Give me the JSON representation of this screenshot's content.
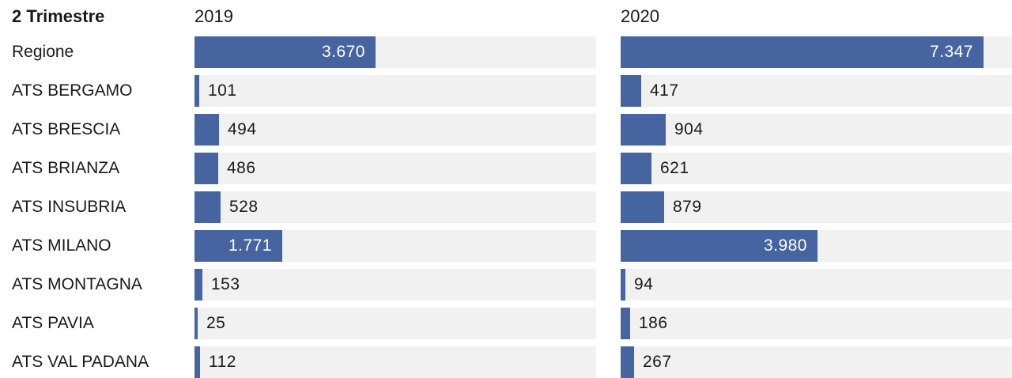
{
  "header": {
    "label_column": "2 Trimestre",
    "columns": [
      "2019",
      "2020"
    ]
  },
  "colors": {
    "bar": "#4664a0",
    "track": "#f1f1f1",
    "text": "#1a1a1a",
    "label_inside": "#ffffff"
  },
  "chart_data": {
    "type": "bar",
    "orientation": "horizontal",
    "categories": [
      "Regione",
      "ATS BERGAMO",
      "ATS BRESCIA",
      "ATS BRIANZA",
      "ATS INSUBRIA",
      "ATS MILANO",
      "ATS MONTAGNA",
      "ATS PAVIA",
      "ATS VAL PADANA"
    ],
    "series": [
      {
        "name": "2019",
        "values": [
          3670,
          101,
          494,
          486,
          528,
          1771,
          153,
          25,
          112
        ],
        "labels": [
          "3.670",
          "101",
          "494",
          "486",
          "528",
          "1.771",
          "153",
          "25",
          "112"
        ]
      },
      {
        "name": "2020",
        "values": [
          7347,
          417,
          904,
          621,
          879,
          3980,
          94,
          186,
          267
        ],
        "labels": [
          "7.347",
          "417",
          "904",
          "621",
          "879",
          "3.980",
          "94",
          "186",
          "267"
        ]
      }
    ],
    "xlim": [
      0,
      8000
    ],
    "grid": false
  }
}
